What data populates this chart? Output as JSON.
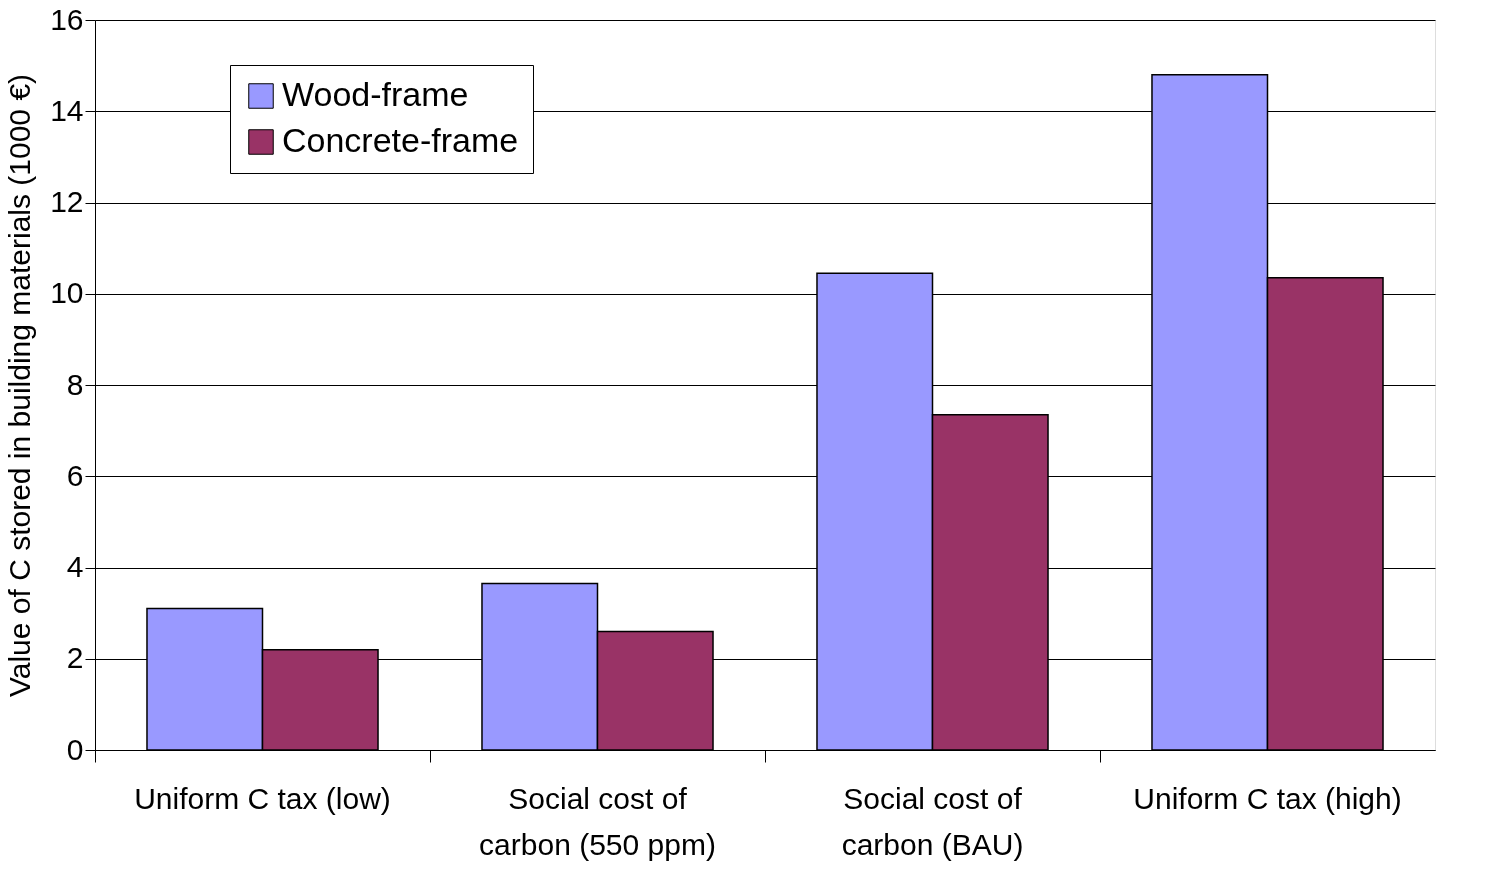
{
  "chart_data": {
    "type": "bar",
    "ylabel": "Value of C stored in building materials (1000 €)",
    "categories": [
      "Uniform C tax (low)",
      "Social cost of carbon (550 ppm)",
      "Social cost of carbon (BAU)",
      "Uniform C tax (high)"
    ],
    "series": [
      {
        "name": "Wood-frame",
        "color": "#9999ff",
        "values": [
          3.1,
          3.65,
          10.45,
          14.8
        ]
      },
      {
        "name": "Concrete-frame",
        "color": "#993366",
        "values": [
          2.2,
          2.6,
          7.35,
          10.35
        ]
      }
    ],
    "ylim": [
      0,
      16
    ],
    "yticks": [
      0,
      2,
      4,
      6,
      8,
      10,
      12,
      14,
      16
    ],
    "grid": "y",
    "legend": "top left"
  }
}
